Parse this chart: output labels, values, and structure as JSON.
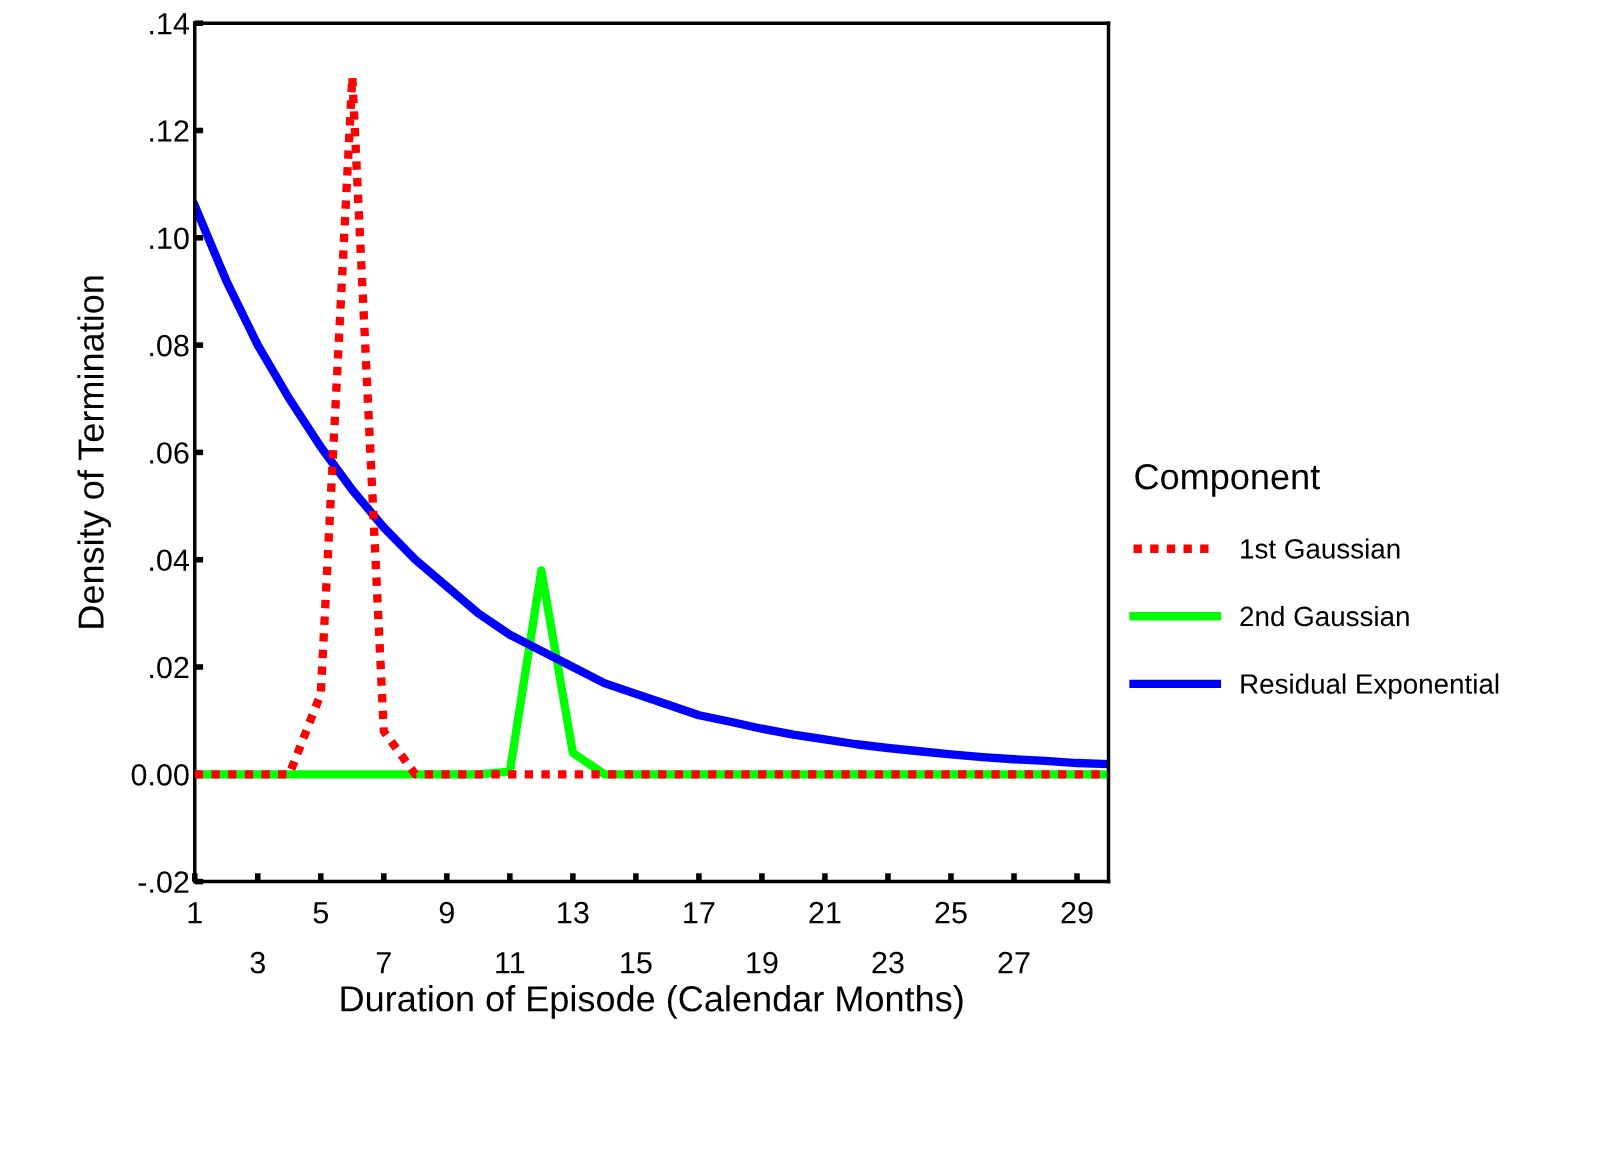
{
  "chart_data": {
    "type": "line",
    "xlabel": "Duration of Episode (Calendar Months)",
    "ylabel": "Density of Termination",
    "legend_title": "Component",
    "legend": "right",
    "grid": false,
    "marker": "none",
    "x": [
      1,
      2,
      3,
      4,
      5,
      6,
      7,
      8,
      9,
      10,
      11,
      12,
      13,
      14,
      15,
      16,
      17,
      18,
      19,
      20,
      21,
      22,
      23,
      24,
      25,
      26,
      27,
      28,
      29,
      30
    ],
    "xlim": [
      1,
      30
    ],
    "xticks": [
      1,
      {
        "value": 3,
        "label": null
      },
      5,
      {
        "value": 7,
        "label": null
      },
      9,
      {
        "value": 11,
        "label": null
      },
      13,
      {
        "value": 15,
        "label": null
      },
      17,
      {
        "value": 19,
        "label": null
      },
      21,
      {
        "value": 23,
        "label": null
      },
      25,
      {
        "value": 27,
        "label": null
      },
      29
    ],
    "x2lim": [
      1,
      30
    ],
    "x2ticks": [
      3,
      7,
      11,
      15,
      19,
      23,
      27
    ],
    "ylim": [
      -0.02,
      0.14
    ],
    "yticks": [
      {
        "value": -0.02,
        "label": "-.02"
      },
      {
        "value": 0,
        "label": "0.00"
      },
      {
        "value": 0.02,
        "label": ".02"
      },
      {
        "value": 0.04,
        "label": ".04"
      },
      {
        "value": 0.06,
        "label": ".06"
      },
      {
        "value": 0.08,
        "label": ".08"
      },
      {
        "value": 0.1,
        "label": ".10"
      },
      {
        "value": 0.12,
        "label": ".12"
      },
      {
        "value": 0.14,
        "label": ".14"
      }
    ],
    "series": [
      {
        "name": "1st Gaussian",
        "color": "#ff0000",
        "line_style": "dotted",
        "values": [
          0,
          0,
          0,
          0,
          0.015,
          0.13,
          0.008,
          0,
          0,
          0,
          0,
          0,
          0,
          0,
          0,
          0,
          0,
          0,
          0,
          0,
          0,
          0,
          0,
          0,
          0,
          0,
          0,
          0,
          0,
          0
        ]
      },
      {
        "name": "2nd Gaussian",
        "color": "#00ff00",
        "line_style": "solid",
        "values": [
          0,
          0,
          0,
          0,
          0,
          0,
          0,
          0,
          0,
          0,
          0.0005,
          0.038,
          0.004,
          0,
          0,
          0,
          0,
          0,
          0,
          0,
          0,
          0,
          0,
          0,
          0,
          0,
          0,
          0,
          0,
          0
        ]
      },
      {
        "name": "Residual Exponential",
        "color": "#0000ff",
        "line_style": "solid",
        "values": [
          0.106,
          0.092,
          0.08,
          0.07,
          0.061,
          0.053,
          0.046,
          0.04,
          0.035,
          0.03,
          0.026,
          0.023,
          0.02,
          0.017,
          0.015,
          0.013,
          0.011,
          0.0098,
          0.0085,
          0.0074,
          0.0065,
          0.0056,
          0.0049,
          0.0043,
          0.0037,
          0.0032,
          0.0028,
          0.0025,
          0.0021,
          0.0019
        ]
      }
    ]
  }
}
